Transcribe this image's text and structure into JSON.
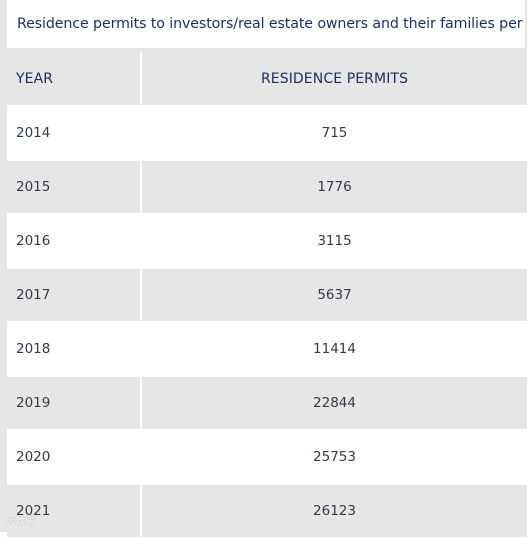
{
  "title": "Residence permits to investors/real estate owners and their families per year",
  "table": {
    "headers": {
      "year": "YEAR",
      "value": "RESIDENCE PERMITS"
    },
    "rows": [
      {
        "year": "2014",
        "value": "715"
      },
      {
        "year": "2015",
        "value": "1776"
      },
      {
        "year": "2016",
        "value": "3115"
      },
      {
        "year": "2017",
        "value": "5637"
      },
      {
        "year": "2018",
        "value": "11414"
      },
      {
        "year": "2019",
        "value": "22844"
      },
      {
        "year": "2020",
        "value": "25753"
      },
      {
        "year": "2021",
        "value": "26123"
      }
    ]
  },
  "chart_data": {
    "type": "table",
    "title": "Residence permits to investors/real estate owners and their families per year",
    "columns": [
      "YEAR",
      "RESIDENCE PERMITS"
    ],
    "categories": [
      "2014",
      "2015",
      "2016",
      "2017",
      "2018",
      "2019",
      "2020",
      "2021"
    ],
    "values": [
      715,
      1776,
      3115,
      5637,
      11414,
      22844,
      25753,
      26123
    ]
  },
  "watermark": "大数据",
  "colors": {
    "header_text": "#1c2f63",
    "row_shade": "#e6e6e6",
    "row_plain": "#ffffff"
  }
}
